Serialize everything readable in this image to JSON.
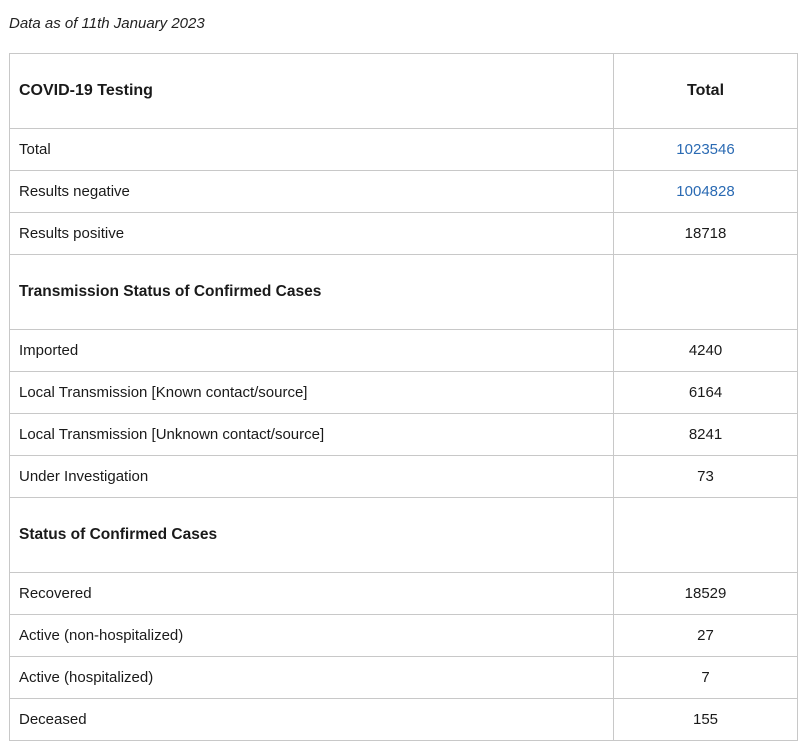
{
  "date_note": "Data as of 11th January 2023",
  "table": {
    "header": {
      "label": "COVID-19 Testing",
      "total_label": "Total"
    },
    "testing_rows": [
      {
        "label": "Total",
        "value": "1023546",
        "link": true
      },
      {
        "label": "Results negative",
        "value": "1004828",
        "link": true
      },
      {
        "label": "Results positive",
        "value": "18718",
        "link": false
      }
    ],
    "transmission_section": "Transmission Status of Confirmed Cases",
    "transmission_rows": [
      {
        "label": "Imported",
        "value": "4240"
      },
      {
        "label": "Local Transmission [Known contact/source]",
        "value": "6164"
      },
      {
        "label": "Local Transmission [Unknown contact/source]",
        "value": "8241"
      },
      {
        "label": "Under Investigation",
        "value": "73"
      }
    ],
    "status_section": "Status of Confirmed Cases",
    "status_rows": [
      {
        "label": "Recovered",
        "value": "18529"
      },
      {
        "label": "Active (non-hospitalized)",
        "value": "27"
      },
      {
        "label": "Active (hospitalized)",
        "value": "7"
      },
      {
        "label": "Deceased",
        "value": "155"
      }
    ]
  },
  "colors": {
    "link": "#2a6ab3",
    "border": "#c8c8c8"
  }
}
